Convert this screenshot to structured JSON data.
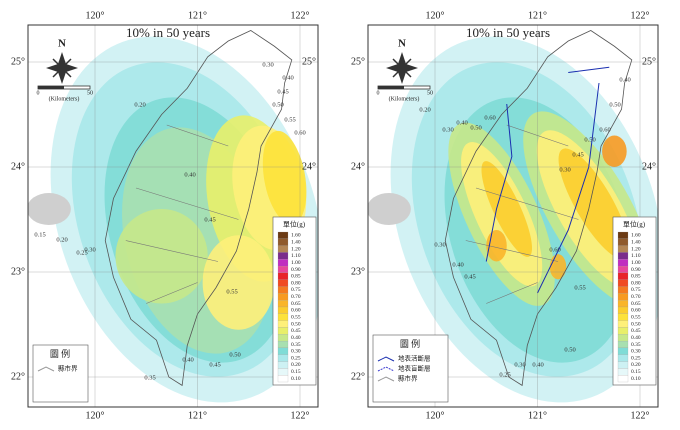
{
  "maps": [
    {
      "title": "10%  in 50 years",
      "lon_labels": [
        "120°",
        "121°",
        "122°"
      ],
      "lat_labels": [
        "25°",
        "24°",
        "23°",
        "22°"
      ],
      "north": "N",
      "scale": [
        "0",
        "50",
        "(Kilometers)"
      ],
      "scale_legend": {
        "title": "單位(g)",
        "entries": [
          {
            "label": "1.60",
            "color": "#6b3a14"
          },
          {
            "label": "1.40",
            "color": "#8f5a2c"
          },
          {
            "label": "1.20",
            "color": "#b38655"
          },
          {
            "label": "1.10",
            "color": "#7b2d8c"
          },
          {
            "label": "1.00",
            "color": "#c02ec0"
          },
          {
            "label": "0.90",
            "color": "#e8479a"
          },
          {
            "label": "0.85",
            "color": "#e8232a"
          },
          {
            "label": "0.80",
            "color": "#f04a22"
          },
          {
            "label": "0.75",
            "color": "#f47a20"
          },
          {
            "label": "0.70",
            "color": "#f79a22"
          },
          {
            "label": "0.65",
            "color": "#f9b52a"
          },
          {
            "label": "0.60",
            "color": "#fbcd2e"
          },
          {
            "label": "0.55",
            "color": "#fde23a"
          },
          {
            "label": "0.50",
            "color": "#fef07a"
          },
          {
            "label": "0.45",
            "color": "#e8ef6a"
          },
          {
            "label": "0.40",
            "color": "#c6e88a"
          },
          {
            "label": "0.35",
            "color": "#a8e0b0"
          },
          {
            "label": "0.30",
            "color": "#7fdcd6"
          },
          {
            "label": "0.25",
            "color": "#a9e8ea"
          },
          {
            "label": "0.20",
            "color": "#cdf1f3"
          },
          {
            "label": "0.15",
            "color": "#e6f8f9"
          },
          {
            "label": "0.10",
            "color": "#ffffff"
          }
        ]
      },
      "legend": {
        "title": "圖  例",
        "items": [
          "縣市界"
        ]
      },
      "contour_labels": [
        "0.30",
        "0.40",
        "0.45",
        "0.55",
        "0.50",
        "0.45",
        "0.40",
        "0.35",
        "0.20",
        "0.15",
        "0.20",
        "0.25",
        "0.30",
        "0.50",
        "0.55",
        "0.60",
        "0.45",
        "0.40"
      ]
    },
    {
      "title": "10%  in 50 years",
      "lon_labels": [
        "120°",
        "121°",
        "122°"
      ],
      "lat_labels": [
        "25°",
        "24°",
        "23°",
        "22°"
      ],
      "north": "N",
      "scale": [
        "0",
        "50",
        "(Kilometers)"
      ],
      "scale_legend": {
        "title": "單位(g)",
        "entries": [
          {
            "label": "1.60",
            "color": "#6b3a14"
          },
          {
            "label": "1.40",
            "color": "#8f5a2c"
          },
          {
            "label": "1.20",
            "color": "#b38655"
          },
          {
            "label": "1.10",
            "color": "#7b2d8c"
          },
          {
            "label": "1.00",
            "color": "#c02ec0"
          },
          {
            "label": "0.90",
            "color": "#e8479a"
          },
          {
            "label": "0.85",
            "color": "#e8232a"
          },
          {
            "label": "0.80",
            "color": "#f04a22"
          },
          {
            "label": "0.75",
            "color": "#f47a20"
          },
          {
            "label": "0.70",
            "color": "#f79a22"
          },
          {
            "label": "0.65",
            "color": "#f9b52a"
          },
          {
            "label": "0.60",
            "color": "#fbcd2e"
          },
          {
            "label": "0.55",
            "color": "#fde23a"
          },
          {
            "label": "0.50",
            "color": "#fef07a"
          },
          {
            "label": "0.45",
            "color": "#e8ef6a"
          },
          {
            "label": "0.40",
            "color": "#c6e88a"
          },
          {
            "label": "0.35",
            "color": "#a8e0b0"
          },
          {
            "label": "0.30",
            "color": "#7fdcd6"
          },
          {
            "label": "0.25",
            "color": "#a9e8ea"
          },
          {
            "label": "0.20",
            "color": "#cdf1f3"
          },
          {
            "label": "0.15",
            "color": "#e6f8f9"
          },
          {
            "label": "0.10",
            "color": "#ffffff"
          }
        ]
      },
      "legend": {
        "title": "圖  例",
        "items": [
          "地表活斷層",
          "地表盲斷層",
          "縣市界"
        ]
      },
      "contour_labels": [
        "0.20",
        "0.30",
        "0.40",
        "0.50",
        "0.60",
        "0.30",
        "0.40",
        "0.45",
        "0.60",
        "0.55",
        "0.50",
        "0.40",
        "0.30",
        "0.25",
        "0.30",
        "0.45",
        "0.50",
        "0.60",
        "0.50",
        "0.40"
      ]
    }
  ]
}
